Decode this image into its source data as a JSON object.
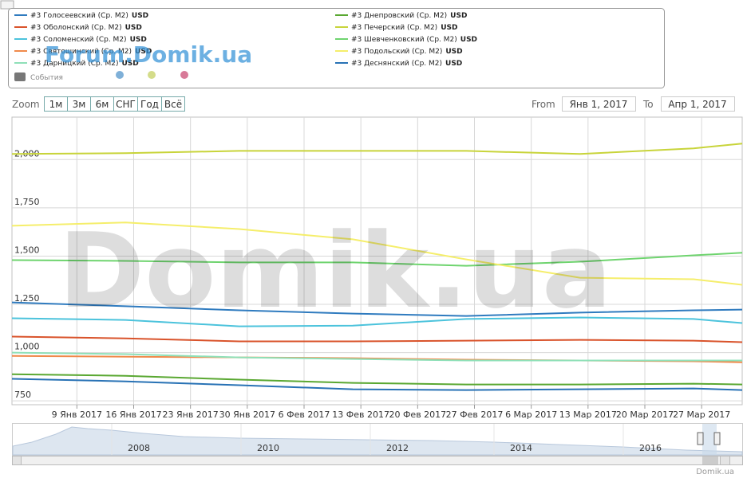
{
  "chart_data": {
    "type": "line",
    "x": [
      "2017-01-01",
      "2017-01-15",
      "2017-01-29",
      "2017-02-12",
      "2017-02-26",
      "2017-03-12",
      "2017-03-26",
      "2017-04-01"
    ],
    "xlim": [
      "2017-01-01",
      "2017-04-01"
    ],
    "xticks": [
      {
        "value": "2017-01-09",
        "label": "9 Янв 2017"
      },
      {
        "value": "2017-01-16",
        "label": "16 Янв 2017"
      },
      {
        "value": "2017-01-23",
        "label": "23 Янв 2017"
      },
      {
        "value": "2017-01-30",
        "label": "30 Янв 2017"
      },
      {
        "value": "2017-02-06",
        "label": "6 Фев 2017"
      },
      {
        "value": "2017-02-13",
        "label": "13 Фев 2017"
      },
      {
        "value": "2017-02-20",
        "label": "20 Фев 2017"
      },
      {
        "value": "2017-02-27",
        "label": "27 Фев 2017"
      },
      {
        "value": "2017-03-06",
        "label": "6 Мар 2017"
      },
      {
        "value": "2017-03-13",
        "label": "13 Мар 2017"
      },
      {
        "value": "2017-03-20",
        "label": "20 Мар 2017"
      },
      {
        "value": "2017-03-27",
        "label": "27 Мар 2017"
      }
    ],
    "ylim": [
      730,
      2220
    ],
    "yticks": [
      750,
      {
        "value": 1000,
        "label": "1,000"
      },
      {
        "value": 1250,
        "label": "1,250"
      },
      {
        "value": 1500,
        "label": "1,500"
      },
      {
        "value": 1750,
        "label": "1,750"
      },
      {
        "value": 2000,
        "label": "2,000"
      }
    ],
    "grid": true,
    "series": [
      {
        "name": "#3 Голосеевский (Ср. М2)",
        "unit": "USD",
        "color": "#2f7bbf",
        "values": [
          1260,
          1240,
          1219,
          1202,
          1190,
          1207,
          1219,
          1223
        ]
      },
      {
        "name": "#3 Оболонский (Ср. М2)",
        "unit": "USD",
        "color": "#d9532b",
        "values": [
          1083,
          1074,
          1058,
          1058,
          1062,
          1066,
          1062,
          1054
        ]
      },
      {
        "name": "#3 Соломенский (Ср. М2)",
        "unit": "USD",
        "color": "#4cc3dc",
        "values": [
          1178,
          1169,
          1136,
          1140,
          1174,
          1182,
          1174,
          1153
        ]
      },
      {
        "name": "#3 Святошинский (Ср. М2)",
        "unit": "USD",
        "color": "#f08a4b",
        "values": [
          983,
          979,
          975,
          971,
          963,
          959,
          955,
          950
        ]
      },
      {
        "name": "#3 Дарницкий (Ср. М2)",
        "unit": "USD",
        "color": "#8fe0b8",
        "values": [
          1000,
          992,
          975,
          967,
          959,
          959,
          959,
          959
        ]
      },
      {
        "name": "#3 Днепровский (Ср. М2)",
        "unit": "USD",
        "color": "#5aa832",
        "values": [
          888,
          880,
          860,
          843,
          835,
          835,
          839,
          835
        ]
      },
      {
        "name": "#3 Печерский (Ср. М2)",
        "unit": "USD",
        "color": "#c8d43a",
        "values": [
          2029,
          2033,
          2045,
          2045,
          2045,
          2029,
          2058,
          2083
        ]
      },
      {
        "name": "#3 Шевченковский (Ср. М2)",
        "unit": "USD",
        "color": "#6fd46f",
        "values": [
          1479,
          1475,
          1467,
          1467,
          1450,
          1471,
          1504,
          1517
        ]
      },
      {
        "name": "#3 Подольский (Ср. М2)",
        "unit": "USD",
        "color": "#f5ee6b",
        "values": [
          1657,
          1674,
          1640,
          1587,
          1483,
          1388,
          1380,
          1351
        ]
      },
      {
        "name": "#3 Деснянский (Ср. М2)",
        "unit": "USD",
        "color": "#2872b5",
        "values": [
          864,
          851,
          831,
          810,
          806,
          810,
          814,
          806
        ]
      }
    ]
  },
  "ui": {
    "forum_watermark": "Forum.Domik.ua",
    "events": "События",
    "zoom": "Zoom",
    "buttons": [
      "1м",
      "3м",
      "6м",
      "СНГ",
      "Год",
      "Всё"
    ],
    "from_label": "From",
    "from_value": "Янв 1, 2017",
    "to_label": "To",
    "to_value": "Апр 1, 2017",
    "watermark": "Domik.ua",
    "navigator_years": [
      "2008",
      "2010",
      "2012",
      "2014",
      "2016"
    ],
    "credit": "Domik.ua"
  }
}
